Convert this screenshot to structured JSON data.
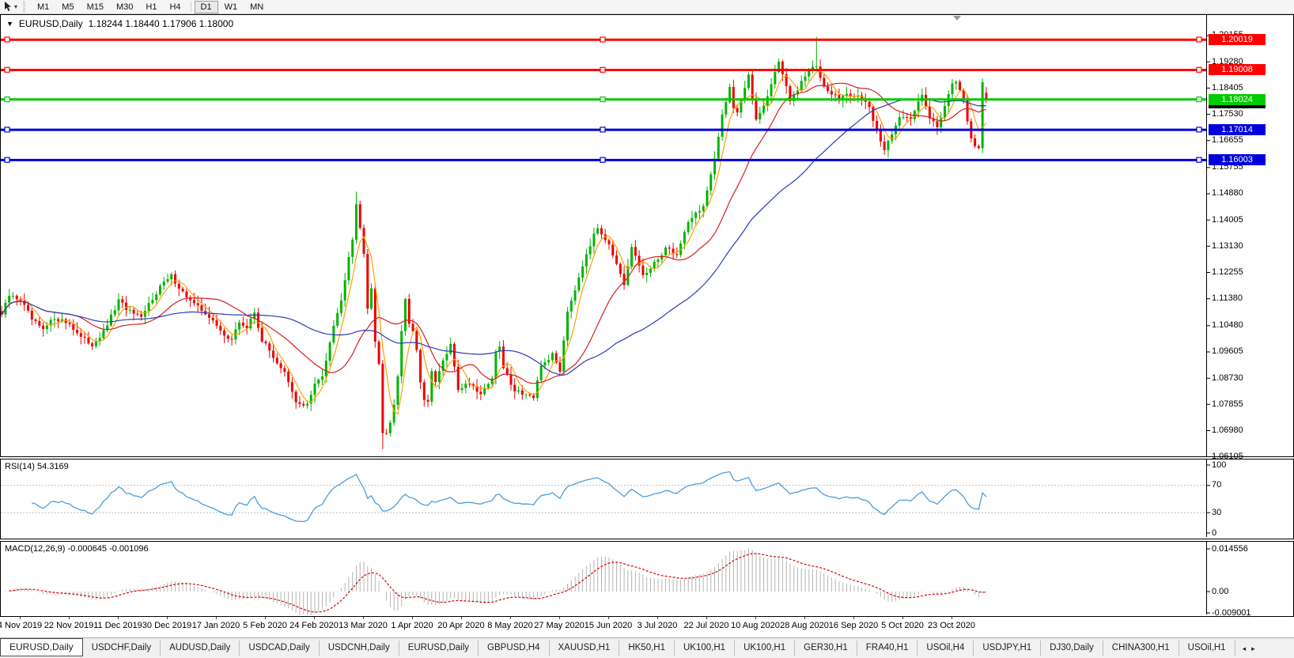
{
  "toolbar": {
    "timeframes": [
      {
        "label": "M1",
        "active": false
      },
      {
        "label": "M5",
        "active": false
      },
      {
        "label": "M15",
        "active": false
      },
      {
        "label": "M30",
        "active": false
      },
      {
        "label": "H1",
        "active": false
      },
      {
        "label": "H4",
        "active": false
      },
      {
        "label": "D1",
        "active": true
      },
      {
        "label": "W1",
        "active": false
      },
      {
        "label": "MN",
        "active": false
      }
    ],
    "active_timeframe": "D1",
    "cursor_dropdown_icon": "▾"
  },
  "chart": {
    "title_symbol": "EURUSD,Daily",
    "ohlc_text": "1.18244 1.18440 1.17906 1.18000",
    "dropdown_icon": "▼"
  },
  "rsi_panel": {
    "label": "RSI(14) 54.3169",
    "axis_labels": [
      {
        "text": "100",
        "value": 100
      },
      {
        "text": "70",
        "value": 70
      },
      {
        "text": "30",
        "value": 30
      },
      {
        "text": "0",
        "value": 0
      }
    ]
  },
  "macd_panel": {
    "label": "MACD(12,26,9) -0.000645 -0.001096",
    "axis_labels": [
      {
        "text": "0.014556",
        "pos": "top"
      },
      {
        "text": "0.00",
        "pos": "zero"
      },
      {
        "text": "-0.009001",
        "pos": "bottom"
      }
    ]
  },
  "tab_bar": {
    "tabs": [
      {
        "label": "EURUSD,Daily",
        "active": true
      },
      {
        "label": "USDCHF,Daily",
        "active": false
      },
      {
        "label": "AUDUSD,Daily",
        "active": false
      },
      {
        "label": "USDCAD,Daily",
        "active": false
      },
      {
        "label": "USDCNH,Daily",
        "active": false
      },
      {
        "label": "EURUSD,Daily",
        "active": false
      },
      {
        "label": "GBPUSD,H4",
        "active": false
      },
      {
        "label": "XAUUSD,H1",
        "active": false
      },
      {
        "label": "HK50,H1",
        "active": false
      },
      {
        "label": "UK100,H1",
        "active": false
      },
      {
        "label": "UK100,H1",
        "active": false
      },
      {
        "label": "GER30,H1",
        "active": false
      },
      {
        "label": "FRA40,H1",
        "active": false
      },
      {
        "label": "USOil,H4",
        "active": false
      },
      {
        "label": "USDJPY,H1",
        "active": false
      },
      {
        "label": "DJ30,Daily",
        "active": false
      },
      {
        "label": "CHINA300,H1",
        "active": false
      },
      {
        "label": "USOil,H1",
        "active": false
      }
    ],
    "scroll_left_icon": "◂",
    "scroll_right_icon": "▸"
  },
  "colors": {
    "candle_up": "#00b400",
    "candle_down": "#ee0000",
    "hline_red": "#ff0000",
    "hline_green": "#00ca00",
    "hline_blue": "#0000dd",
    "ma_fast": "#ffa000",
    "ma_mid": "#d42020",
    "ma_slow": "#2c3cb8",
    "rsi_line": "#4a9ede",
    "rsi_level": "#bdbdbd",
    "macd_hist": "#b4b4b4",
    "macd_signal": "#dc0000",
    "bid_badge": "#000000"
  },
  "chart_data": {
    "type": "candlestick",
    "symbol": "EURUSD",
    "timeframe": "Daily",
    "current_bar": {
      "open": 1.18244,
      "high": 1.1844,
      "low": 1.17906,
      "close": 1.18
    },
    "visible_price_range": [
      1.06097,
      1.20867
    ],
    "n_candles": 262,
    "first_index": -5,
    "last_index": 256,
    "close_waypoints": [
      [
        -5,
        1.1085
      ],
      [
        -3,
        1.1148
      ],
      [
        0,
        1.1135
      ],
      [
        3,
        1.1068
      ],
      [
        6,
        1.1032
      ],
      [
        9,
        1.1075
      ],
      [
        13,
        1.1055
      ],
      [
        16,
        1.1008
      ],
      [
        19,
        1.0985
      ],
      [
        22,
        1.1025
      ],
      [
        26,
        1.113
      ],
      [
        29,
        1.1095
      ],
      [
        32,
        1.107
      ],
      [
        34,
        1.112
      ],
      [
        37,
        1.118
      ],
      [
        40,
        1.1213
      ],
      [
        43,
        1.116
      ],
      [
        46,
        1.1118
      ],
      [
        49,
        1.1092
      ],
      [
        53,
        1.103
      ],
      [
        56,
        1.1
      ],
      [
        58,
        1.106
      ],
      [
        60,
        1.104
      ],
      [
        62,
        1.1093
      ],
      [
        64,
        1.1
      ],
      [
        67,
        1.0945
      ],
      [
        70,
        1.089
      ],
      [
        73,
        1.079
      ],
      [
        76,
        1.0785
      ],
      [
        78,
        1.085
      ],
      [
        80,
        1.088
      ],
      [
        83,
        1.1055
      ],
      [
        85,
        1.113
      ],
      [
        87,
        1.1285
      ],
      [
        88,
        1.134
      ],
      [
        89,
        1.1456
      ],
      [
        90,
        1.138
      ],
      [
        91,
        1.128
      ],
      [
        92,
        1.1105
      ],
      [
        93,
        1.118
      ],
      [
        94,
        1.0995
      ],
      [
        95,
        1.0915
      ],
      [
        96,
        1.069
      ],
      [
        97,
        1.0695
      ],
      [
        98,
        1.0725
      ],
      [
        99,
        1.0787
      ],
      [
        100,
        1.0883
      ],
      [
        101,
        1.103
      ],
      [
        102,
        1.114
      ],
      [
        103,
        1.1048
      ],
      [
        104,
        1.103
      ],
      [
        105,
        1.096
      ],
      [
        106,
        1.0855
      ],
      [
        107,
        1.0808
      ],
      [
        108,
        1.0793
      ],
      [
        109,
        1.089
      ],
      [
        110,
        1.0858
      ],
      [
        112,
        1.093
      ],
      [
        114,
        1.098
      ],
      [
        115,
        1.0912
      ],
      [
        116,
        1.0838
      ],
      [
        119,
        1.0858
      ],
      [
        122,
        1.0822
      ],
      [
        125,
        1.0875
      ],
      [
        126,
        1.0955
      ],
      [
        127,
        1.098
      ],
      [
        128,
        1.0905
      ],
      [
        131,
        1.0834
      ],
      [
        135,
        1.0815
      ],
      [
        136,
        1.08
      ],
      [
        138,
        1.0915
      ],
      [
        141,
        1.095
      ],
      [
        143,
        1.09
      ],
      [
        145,
        1.1101
      ],
      [
        146,
        1.1134
      ],
      [
        150,
        1.1291
      ],
      [
        153,
        1.1375
      ],
      [
        156,
        1.1323
      ],
      [
        160,
        1.1177
      ],
      [
        162,
        1.1308
      ],
      [
        165,
        1.1218
      ],
      [
        167,
        1.1234
      ],
      [
        171,
        1.1308
      ],
      [
        174,
        1.1284
      ],
      [
        177,
        1.1398
      ],
      [
        181,
        1.1447
      ],
      [
        184,
        1.1598
      ],
      [
        186,
        1.1754
      ],
      [
        188,
        1.1846
      ],
      [
        189,
        1.1778
      ],
      [
        190,
        1.1762
      ],
      [
        193,
        1.1878
      ],
      [
        195,
        1.1737
      ],
      [
        198,
        1.1813
      ],
      [
        201,
        1.1933
      ],
      [
        204,
        1.1796
      ],
      [
        206,
        1.1834
      ],
      [
        209,
        1.1903
      ],
      [
        211,
        1.1911
      ],
      [
        213,
        1.1851
      ],
      [
        217,
        1.1801
      ],
      [
        218,
        1.1815
      ],
      [
        222,
        1.1816
      ],
      [
        225,
        1.1772
      ],
      [
        229,
        1.1631
      ],
      [
        230,
        1.1665
      ],
      [
        233,
        1.1748
      ],
      [
        236,
        1.1733
      ],
      [
        239,
        1.1826
      ],
      [
        241,
        1.1745
      ],
      [
        243,
        1.1708
      ],
      [
        247,
        1.1862
      ],
      [
        248,
        1.186
      ],
      [
        250,
        1.1795
      ],
      [
        252,
        1.1673
      ],
      [
        253,
        1.1647
      ],
      [
        254,
        1.164
      ],
      [
        255,
        1.186
      ],
      [
        256,
        1.18
      ]
    ],
    "wick_overrides": {
      "89": {
        "high": 1.1495
      },
      "96": {
        "low": 1.0636
      },
      "211": {
        "high": 1.2011
      },
      "255": {
        "high": 1.1872
      },
      "256": {
        "open": 1.18244,
        "high": 1.1844,
        "low": 1.17906,
        "close": 1.18
      }
    },
    "horizontal_lines": [
      {
        "price": 1.20019,
        "label": "1.20019",
        "color": "#ff0000"
      },
      {
        "price": 1.19008,
        "label": "1.19008",
        "color": "#ff0000"
      },
      {
        "price": 1.18024,
        "label": "1.18024",
        "color": "#00ca00"
      },
      {
        "price": 1.17014,
        "label": "1.17014",
        "color": "#0000dd"
      },
      {
        "price": 1.16003,
        "label": "1.16003",
        "color": "#0000dd"
      }
    ],
    "bid_price": 1.18,
    "bid_label": "1.18000",
    "moving_averages": [
      {
        "period": 5,
        "color": "#ffa000"
      },
      {
        "period": 20,
        "color": "#d42020"
      },
      {
        "period": 50,
        "color": "#2c3cb8"
      }
    ],
    "indicators": [
      {
        "name": "RSI",
        "period": 14,
        "current_value": 54.3169,
        "levels": [
          70,
          30
        ],
        "range": [
          0,
          100
        ]
      },
      {
        "name": "MACD",
        "fast": 12,
        "slow": 26,
        "signal": 9,
        "macd_value": -0.000645,
        "signal_value": -0.001096,
        "axis_max": 0.014556,
        "axis_min": -0.009001
      }
    ],
    "price_axis_ticks": [
      "1.20155",
      "1.19280",
      "1.18405",
      "1.17530",
      "1.16655",
      "1.15755",
      "1.14880",
      "1.14005",
      "1.13130",
      "1.12255",
      "1.11380",
      "1.10480",
      "1.09605",
      "1.08730",
      "1.07855",
      "1.06980",
      "1.06105"
    ],
    "date_labels": [
      "4 Nov 2019",
      "22 Nov 2019",
      "11 Dec 2019",
      "30 Dec 2019",
      "17 Jan 2020",
      "5 Feb 2020",
      "24 Feb 2020",
      "13 Mar 2020",
      "1 Apr 2020",
      "20 Apr 2020",
      "8 May 2020",
      "27 May 2020",
      "15 Jun 2020",
      "3 Jul 2020",
      "22 Jul 2020",
      "10 Aug 2020",
      "28 Aug 2020",
      "16 Sep 2020",
      "5 Oct 2020",
      "23 Oct 2020"
    ]
  }
}
